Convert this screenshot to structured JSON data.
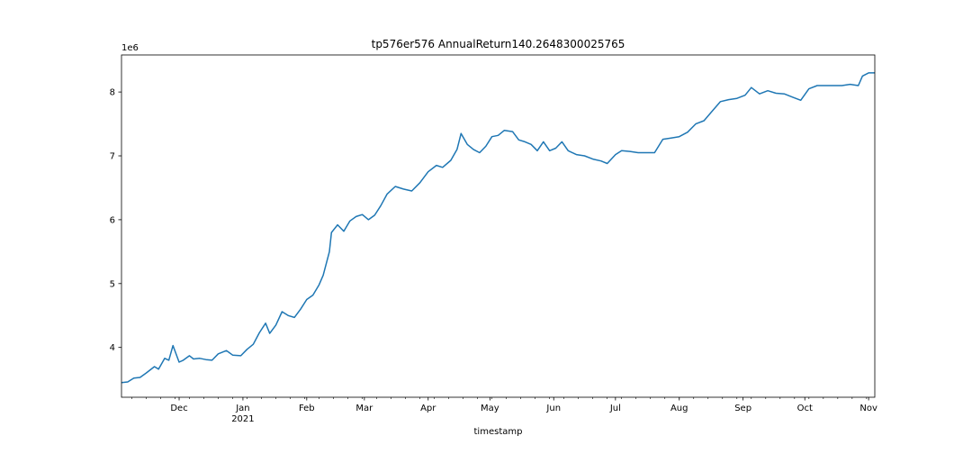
{
  "chart_data": {
    "type": "line",
    "title": "tp576er576 AnnualReturn140.2648300025765",
    "xlabel": "timestamp",
    "ylabel": "",
    "y_offset_text": "1e6",
    "y_scale": 1000000,
    "ylim": [
      3.22,
      8.58
    ],
    "xlim": [
      "2020-11-03",
      "2021-11-04"
    ],
    "x_ticks": [
      {
        "date": "2020-12-01",
        "label": "Dec",
        "sublabel": ""
      },
      {
        "date": "2021-01-01",
        "label": "Jan",
        "sublabel": "2021"
      },
      {
        "date": "2021-02-01",
        "label": "Feb",
        "sublabel": ""
      },
      {
        "date": "2021-03-01",
        "label": "Mar",
        "sublabel": ""
      },
      {
        "date": "2021-04-01",
        "label": "Apr",
        "sublabel": ""
      },
      {
        "date": "2021-05-01",
        "label": "May",
        "sublabel": ""
      },
      {
        "date": "2021-06-01",
        "label": "Jun",
        "sublabel": ""
      },
      {
        "date": "2021-07-01",
        "label": "Jul",
        "sublabel": ""
      },
      {
        "date": "2021-08-01",
        "label": "Aug",
        "sublabel": ""
      },
      {
        "date": "2021-09-01",
        "label": "Sep",
        "sublabel": ""
      },
      {
        "date": "2021-10-01",
        "label": "Oct",
        "sublabel": ""
      },
      {
        "date": "2021-11-01",
        "label": "Nov",
        "sublabel": ""
      }
    ],
    "y_ticks": [
      4,
      5,
      6,
      7,
      8
    ],
    "grid": false,
    "legend": "none",
    "series": [
      {
        "color": "#1f77b4",
        "points": [
          [
            "2020-11-03",
            3.45
          ],
          [
            "2020-11-06",
            3.46
          ],
          [
            "2020-11-09",
            3.52
          ],
          [
            "2020-11-12",
            3.53
          ],
          [
            "2020-11-15",
            3.6
          ],
          [
            "2020-11-19",
            3.7
          ],
          [
            "2020-11-21",
            3.66
          ],
          [
            "2020-11-24",
            3.83
          ],
          [
            "2020-11-26",
            3.8
          ],
          [
            "2020-11-28",
            4.03
          ],
          [
            "2020-12-01",
            3.77
          ],
          [
            "2020-12-03",
            3.8
          ],
          [
            "2020-12-06",
            3.87
          ],
          [
            "2020-12-08",
            3.82
          ],
          [
            "2020-12-11",
            3.83
          ],
          [
            "2020-12-14",
            3.81
          ],
          [
            "2020-12-17",
            3.8
          ],
          [
            "2020-12-20",
            3.9
          ],
          [
            "2020-12-24",
            3.95
          ],
          [
            "2020-12-27",
            3.88
          ],
          [
            "2020-12-31",
            3.87
          ],
          [
            "2021-01-03",
            3.97
          ],
          [
            "2021-01-06",
            4.05
          ],
          [
            "2021-01-09",
            4.23
          ],
          [
            "2021-01-12",
            4.38
          ],
          [
            "2021-01-14",
            4.22
          ],
          [
            "2021-01-17",
            4.35
          ],
          [
            "2021-01-20",
            4.56
          ],
          [
            "2021-01-23",
            4.5
          ],
          [
            "2021-01-26",
            4.47
          ],
          [
            "2021-01-29",
            4.6
          ],
          [
            "2021-02-01",
            4.75
          ],
          [
            "2021-02-04",
            4.82
          ],
          [
            "2021-02-07",
            4.98
          ],
          [
            "2021-02-09",
            5.13
          ],
          [
            "2021-02-12",
            5.5
          ],
          [
            "2021-02-13",
            5.8
          ],
          [
            "2021-02-16",
            5.92
          ],
          [
            "2021-02-19",
            5.82
          ],
          [
            "2021-02-22",
            5.98
          ],
          [
            "2021-02-25",
            6.05
          ],
          [
            "2021-02-28",
            6.08
          ],
          [
            "2021-03-03",
            6.0
          ],
          [
            "2021-03-06",
            6.07
          ],
          [
            "2021-03-09",
            6.22
          ],
          [
            "2021-03-12",
            6.4
          ],
          [
            "2021-03-16",
            6.52
          ],
          [
            "2021-03-20",
            6.48
          ],
          [
            "2021-03-24",
            6.45
          ],
          [
            "2021-03-28",
            6.58
          ],
          [
            "2021-04-01",
            6.75
          ],
          [
            "2021-04-05",
            6.85
          ],
          [
            "2021-04-08",
            6.82
          ],
          [
            "2021-04-12",
            6.93
          ],
          [
            "2021-04-15",
            7.1
          ],
          [
            "2021-04-17",
            7.35
          ],
          [
            "2021-04-20",
            7.18
          ],
          [
            "2021-04-23",
            7.1
          ],
          [
            "2021-04-26",
            7.05
          ],
          [
            "2021-04-29",
            7.15
          ],
          [
            "2021-05-02",
            7.3
          ],
          [
            "2021-05-05",
            7.32
          ],
          [
            "2021-05-08",
            7.4
          ],
          [
            "2021-05-12",
            7.38
          ],
          [
            "2021-05-15",
            7.25
          ],
          [
            "2021-05-18",
            7.22
          ],
          [
            "2021-05-21",
            7.18
          ],
          [
            "2021-05-24",
            7.08
          ],
          [
            "2021-05-27",
            7.22
          ],
          [
            "2021-05-30",
            7.08
          ],
          [
            "2021-06-02",
            7.12
          ],
          [
            "2021-06-05",
            7.22
          ],
          [
            "2021-06-08",
            7.08
          ],
          [
            "2021-06-12",
            7.02
          ],
          [
            "2021-06-16",
            7.0
          ],
          [
            "2021-06-20",
            6.95
          ],
          [
            "2021-06-24",
            6.92
          ],
          [
            "2021-06-27",
            6.88
          ],
          [
            "2021-07-01",
            7.02
          ],
          [
            "2021-07-04",
            7.08
          ],
          [
            "2021-07-08",
            7.07
          ],
          [
            "2021-07-12",
            7.05
          ],
          [
            "2021-07-16",
            7.05
          ],
          [
            "2021-07-20",
            7.05
          ],
          [
            "2021-07-24",
            7.26
          ],
          [
            "2021-07-28",
            7.28
          ],
          [
            "2021-08-01",
            7.3
          ],
          [
            "2021-08-05",
            7.37
          ],
          [
            "2021-08-09",
            7.5
          ],
          [
            "2021-08-13",
            7.55
          ],
          [
            "2021-08-17",
            7.7
          ],
          [
            "2021-08-21",
            7.85
          ],
          [
            "2021-08-25",
            7.88
          ],
          [
            "2021-08-29",
            7.9
          ],
          [
            "2021-09-02",
            7.95
          ],
          [
            "2021-09-05",
            8.07
          ],
          [
            "2021-09-09",
            7.97
          ],
          [
            "2021-09-13",
            8.02
          ],
          [
            "2021-09-17",
            7.98
          ],
          [
            "2021-09-21",
            7.97
          ],
          [
            "2021-09-25",
            7.92
          ],
          [
            "2021-09-29",
            7.87
          ],
          [
            "2021-10-03",
            8.05
          ],
          [
            "2021-10-07",
            8.1
          ],
          [
            "2021-10-11",
            8.1
          ],
          [
            "2021-10-15",
            8.1
          ],
          [
            "2021-10-19",
            8.1
          ],
          [
            "2021-10-23",
            8.12
          ],
          [
            "2021-10-27",
            8.1
          ],
          [
            "2021-10-29",
            8.25
          ],
          [
            "2021-11-01",
            8.3
          ],
          [
            "2021-11-04",
            8.3
          ]
        ]
      }
    ]
  }
}
